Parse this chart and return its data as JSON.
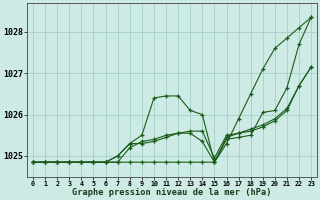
{
  "title": "Graphe pression niveau de la mer (hPa)",
  "background_color": "#ceeae4",
  "grid_color": "#aad4cc",
  "line_color": "#1a5c1a",
  "xlim": [
    -0.5,
    23.5
  ],
  "ylim": [
    1024.5,
    1028.7
  ],
  "yticks": [
    1025,
    1026,
    1027,
    1028
  ],
  "xtick_labels": [
    "0",
    "1",
    "2",
    "3",
    "4",
    "5",
    "6",
    "7",
    "8",
    "9",
    "10",
    "11",
    "12",
    "13",
    "14",
    "15",
    "16",
    "17",
    "18",
    "19",
    "20",
    "21",
    "22",
    "23"
  ],
  "series": [
    {
      "x": [
        0,
        1,
        2,
        3,
        4,
        5,
        6,
        7,
        8,
        9,
        10,
        11,
        12,
        13,
        14,
        15,
        16,
        17,
        18,
        19,
        20,
        21,
        22,
        23
      ],
      "y": [
        1024.85,
        1024.85,
        1024.85,
        1024.85,
        1024.85,
        1024.85,
        1024.85,
        1024.85,
        1024.85,
        1024.85,
        1024.85,
        1024.85,
        1024.85,
        1024.85,
        1024.85,
        1024.85,
        1025.3,
        1025.9,
        1026.5,
        1027.1,
        1027.6,
        1027.85,
        1028.1,
        1028.35
      ]
    },
    {
      "x": [
        0,
        1,
        2,
        3,
        4,
        5,
        6,
        7,
        8,
        9,
        10,
        11,
        12,
        13,
        14,
        15,
        16,
        17,
        18,
        19,
        20,
        21,
        22,
        23
      ],
      "y": [
        1024.85,
        1024.85,
        1024.85,
        1024.85,
        1024.85,
        1024.85,
        1024.85,
        1025.0,
        1025.3,
        1025.5,
        1026.4,
        1026.45,
        1026.45,
        1026.1,
        1026.0,
        1024.85,
        1025.4,
        1025.45,
        1025.5,
        1026.05,
        1026.1,
        1026.65,
        1027.7,
        1028.35
      ]
    },
    {
      "x": [
        0,
        1,
        2,
        3,
        4,
        5,
        6,
        7,
        8,
        9,
        10,
        11,
        12,
        13,
        14,
        15,
        16,
        17,
        18,
        19,
        20,
        21,
        22,
        23
      ],
      "y": [
        1024.85,
        1024.85,
        1024.85,
        1024.85,
        1024.85,
        1024.85,
        1024.85,
        1024.85,
        1025.2,
        1025.35,
        1025.4,
        1025.5,
        1025.55,
        1025.55,
        1025.35,
        1024.85,
        1025.45,
        1025.55,
        1025.6,
        1025.7,
        1025.85,
        1026.1,
        1026.7,
        1027.15
      ]
    },
    {
      "x": [
        0,
        1,
        2,
        3,
        4,
        5,
        6,
        7,
        8,
        9,
        10,
        11,
        12,
        13,
        14,
        15,
        16,
        17,
        18,
        19,
        20,
        21,
        22,
        23
      ],
      "y": [
        1024.85,
        1024.85,
        1024.85,
        1024.85,
        1024.85,
        1024.85,
        1024.85,
        1025.0,
        1025.3,
        1025.3,
        1025.35,
        1025.45,
        1025.55,
        1025.6,
        1025.6,
        1024.95,
        1025.5,
        1025.55,
        1025.65,
        1025.75,
        1025.9,
        1026.15,
        1026.7,
        1027.15
      ]
    }
  ]
}
